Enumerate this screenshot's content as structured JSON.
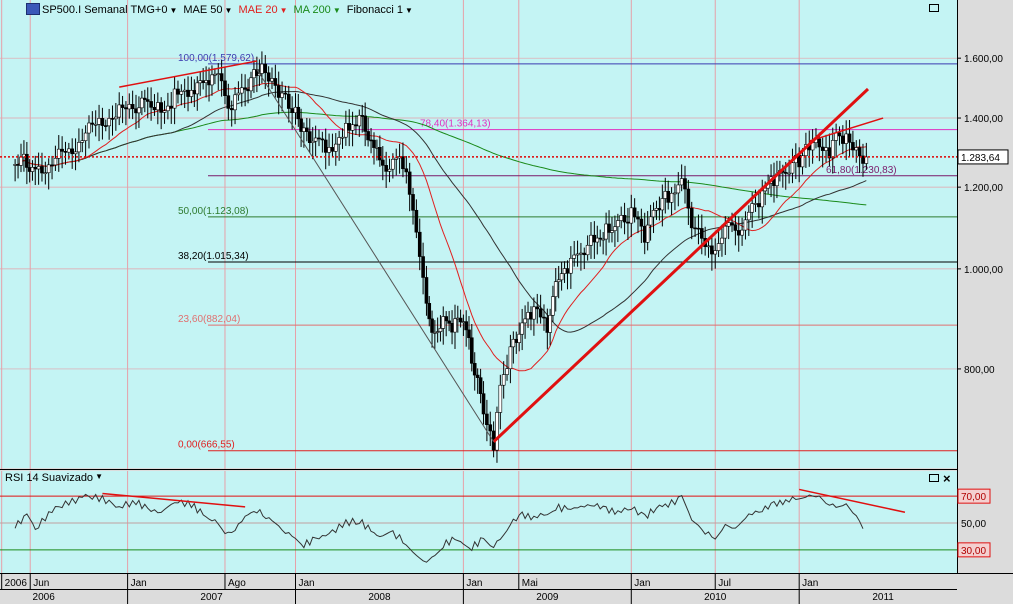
{
  "header": {
    "symbol": "SP500.I Semanal TMG+0",
    "indicators": [
      {
        "label": "MAE 50",
        "color": "#000000"
      },
      {
        "label": "MAE 20",
        "color": "#e0201f"
      },
      {
        "label": "MA 200",
        "color": "#1a8a1a"
      },
      {
        "label": "Fibonacci 1",
        "color": "#000000"
      }
    ]
  },
  "rsi_panel": {
    "title": "RSI 14 Suavizado"
  },
  "colors": {
    "plot_bg": "#c4f4f4",
    "panel_bg": "#dcdcdc",
    "grid": "#e6a0a8",
    "trendline": "#e01010",
    "price_line": "#e00000"
  },
  "chart_data": [
    {
      "type": "candlestick",
      "title": "SP500.I Semanal TMG+0",
      "y_scale": "log",
      "ylim": [
        650,
        1750
      ],
      "y_ticks": [
        "1.600,00",
        "1.400,00",
        "1.200,00",
        "1.000,00",
        "800,00"
      ],
      "y_tick_values": [
        1600,
        1400,
        1200,
        1000,
        800
      ],
      "current_price": {
        "label": "1.283,64",
        "value": 1283.64
      },
      "fibonacci": [
        {
          "label": "100,00(1.579,62)",
          "value": 1579.62,
          "color": "#3b3bb0"
        },
        {
          "label": "78,40(1.364,13)",
          "value": 1364.13,
          "color": "#e030c0"
        },
        {
          "label": "61,80(1.230,83)",
          "value": 1230.83,
          "color": "#7a1a6a"
        },
        {
          "label": "50,00(1.123,08)",
          "value": 1123.08,
          "color": "#2e7a2e"
        },
        {
          "label": "38,20(1.015,34)",
          "value": 1015.34,
          "color": "#000000"
        },
        {
          "label": "23,60(882,04)",
          "value": 882.04,
          "color": "#e07070"
        },
        {
          "label": "0,00(666,55)",
          "value": 666.55,
          "color": "#e02020"
        }
      ],
      "weekly_close_path": [
        [
          2006.33,
          1260
        ],
        [
          2006.4,
          1275
        ],
        [
          2006.45,
          1245
        ],
        [
          2006.55,
          1270
        ],
        [
          2006.65,
          1300
        ],
        [
          2006.75,
          1350
        ],
        [
          2006.85,
          1395
        ],
        [
          2006.95,
          1415
        ],
        [
          2007.05,
          1440
        ],
        [
          2007.12,
          1460
        ],
        [
          2007.2,
          1420
        ],
        [
          2007.28,
          1470
        ],
        [
          2007.38,
          1500
        ],
        [
          2007.45,
          1525
        ],
        [
          2007.52,
          1545
        ],
        [
          2007.58,
          1470
        ],
        [
          2007.62,
          1440
        ],
        [
          2007.7,
          1500
        ],
        [
          2007.77,
          1560
        ],
        [
          2007.8,
          1575
        ],
        [
          2007.86,
          1500
        ],
        [
          2007.92,
          1470
        ],
        [
          2008.0,
          1420
        ],
        [
          2008.05,
          1350
        ],
        [
          2008.12,
          1330
        ],
        [
          2008.2,
          1310
        ],
        [
          2008.3,
          1370
        ],
        [
          2008.38,
          1400
        ],
        [
          2008.45,
          1320
        ],
        [
          2008.52,
          1260
        ],
        [
          2008.58,
          1275
        ],
        [
          2008.66,
          1250
        ],
        [
          2008.72,
          1100
        ],
        [
          2008.78,
          920
        ],
        [
          2008.83,
          860
        ],
        [
          2008.88,
          900
        ],
        [
          2008.95,
          880
        ],
        [
          2009.0,
          900
        ],
        [
          2009.05,
          820
        ],
        [
          2009.12,
          730
        ],
        [
          2009.18,
          680
        ],
        [
          2009.22,
          760
        ],
        [
          2009.28,
          830
        ],
        [
          2009.35,
          880
        ],
        [
          2009.42,
          910
        ],
        [
          2009.5,
          880
        ],
        [
          2009.55,
          960
        ],
        [
          2009.62,
          1000
        ],
        [
          2009.7,
          1040
        ],
        [
          2009.78,
          1070
        ],
        [
          2009.85,
          1090
        ],
        [
          2009.92,
          1110
        ],
        [
          2010.0,
          1130
        ],
        [
          2010.08,
          1080
        ],
        [
          2010.15,
          1150
        ],
        [
          2010.22,
          1180
        ],
        [
          2010.3,
          1210
        ],
        [
          2010.36,
          1100
        ],
        [
          2010.42,
          1080
        ],
        [
          2010.5,
          1030
        ],
        [
          2010.56,
          1100
        ],
        [
          2010.62,
          1080
        ],
        [
          2010.7,
          1130
        ],
        [
          2010.78,
          1180
        ],
        [
          2010.85,
          1220
        ],
        [
          2010.92,
          1240
        ],
        [
          2011.0,
          1275
        ],
        [
          2011.06,
          1310
        ],
        [
          2011.12,
          1330
        ],
        [
          2011.18,
          1300
        ],
        [
          2011.22,
          1330
        ],
        [
          2011.28,
          1340
        ],
        [
          2011.34,
          1300
        ],
        [
          2011.38,
          1270
        ],
        [
          2011.4,
          1283.64
        ]
      ]
    },
    {
      "type": "line",
      "title": "RSI 14 Suavizado",
      "ylim": [
        15,
        85
      ],
      "y_ticks": [
        "70,00",
        "50,00",
        "30,00"
      ],
      "y_tick_values": [
        70,
        50,
        30
      ],
      "values": [
        [
          2006.33,
          48
        ],
        [
          2006.4,
          55
        ],
        [
          2006.45,
          45
        ],
        [
          2006.55,
          60
        ],
        [
          2006.65,
          65
        ],
        [
          2006.75,
          70
        ],
        [
          2006.85,
          68
        ],
        [
          2006.95,
          62
        ],
        [
          2007.05,
          66
        ],
        [
          2007.12,
          60
        ],
        [
          2007.2,
          58
        ],
        [
          2007.28,
          66
        ],
        [
          2007.38,
          64
        ],
        [
          2007.45,
          56
        ],
        [
          2007.52,
          50
        ],
        [
          2007.58,
          40
        ],
        [
          2007.62,
          42
        ],
        [
          2007.7,
          55
        ],
        [
          2007.77,
          60
        ],
        [
          2007.86,
          50
        ],
        [
          2007.92,
          44
        ],
        [
          2008.0,
          40
        ],
        [
          2008.05,
          34
        ],
        [
          2008.12,
          38
        ],
        [
          2008.2,
          42
        ],
        [
          2008.3,
          50
        ],
        [
          2008.38,
          52
        ],
        [
          2008.45,
          44
        ],
        [
          2008.52,
          38
        ],
        [
          2008.58,
          42
        ],
        [
          2008.66,
          36
        ],
        [
          2008.72,
          28
        ],
        [
          2008.78,
          22
        ],
        [
          2008.83,
          28
        ],
        [
          2008.88,
          34
        ],
        [
          2008.95,
          38
        ],
        [
          2009.0,
          36
        ],
        [
          2009.05,
          32
        ],
        [
          2009.12,
          38
        ],
        [
          2009.18,
          30
        ],
        [
          2009.22,
          40
        ],
        [
          2009.28,
          50
        ],
        [
          2009.35,
          56
        ],
        [
          2009.42,
          54
        ],
        [
          2009.5,
          58
        ],
        [
          2009.55,
          62
        ],
        [
          2009.62,
          60
        ],
        [
          2009.7,
          62
        ],
        [
          2009.78,
          64
        ],
        [
          2009.85,
          60
        ],
        [
          2009.92,
          58
        ],
        [
          2010.0,
          62
        ],
        [
          2010.08,
          54
        ],
        [
          2010.15,
          62
        ],
        [
          2010.22,
          64
        ],
        [
          2010.3,
          68
        ],
        [
          2010.36,
          50
        ],
        [
          2010.42,
          44
        ],
        [
          2010.5,
          40
        ],
        [
          2010.56,
          50
        ],
        [
          2010.62,
          46
        ],
        [
          2010.7,
          56
        ],
        [
          2010.78,
          60
        ],
        [
          2010.85,
          64
        ],
        [
          2010.92,
          66
        ],
        [
          2011.0,
          70
        ],
        [
          2011.06,
          72
        ],
        [
          2011.12,
          70
        ],
        [
          2011.18,
          62
        ],
        [
          2011.22,
          64
        ],
        [
          2011.28,
          66
        ],
        [
          2011.34,
          56
        ],
        [
          2011.38,
          48
        ],
        [
          2011.4,
          50
        ]
      ]
    }
  ],
  "x_axis": {
    "months": [
      {
        "label": "2006",
        "t": 2006.25
      },
      {
        "label": "Jun",
        "t": 2006.42
      },
      {
        "label": "Jan",
        "t": 2007.0
      },
      {
        "label": "Ago",
        "t": 2007.58
      },
      {
        "label": "Jan",
        "t": 2008.0
      },
      {
        "label": "Jan",
        "t": 2009.0
      },
      {
        "label": "Mai",
        "t": 2009.33
      },
      {
        "label": "Jan",
        "t": 2010.0
      },
      {
        "label": "Jul",
        "t": 2010.5
      },
      {
        "label": "Jan",
        "t": 2011.0
      }
    ],
    "years": [
      {
        "label": "2006",
        "t": 2006.5
      },
      {
        "label": "2007",
        "t": 2007.5
      },
      {
        "label": "2008",
        "t": 2008.5
      },
      {
        "label": "2009",
        "t": 2009.5
      },
      {
        "label": "2010",
        "t": 2010.5
      },
      {
        "label": "2011",
        "t": 2011.5
      }
    ]
  }
}
